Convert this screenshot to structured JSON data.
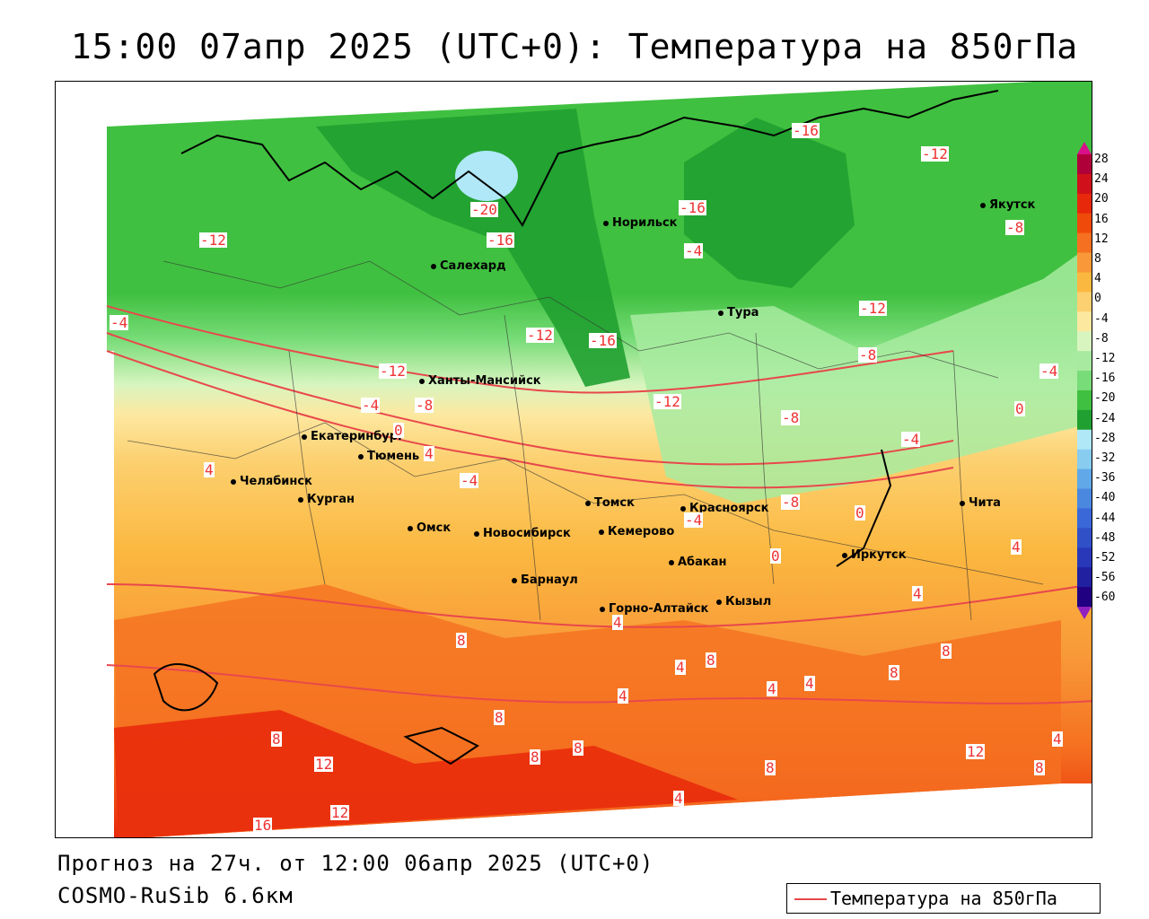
{
  "title": "15:00 07апр 2025 (UTC+0): Температура на 850гПа",
  "footer": {
    "forecast": "Прогноз на 27ч. от 12:00 06апр 2025 (UTC+0)",
    "model": "COSMO-RuSib 6.6км"
  },
  "legend": {
    "label": "Температура на 850гПа",
    "line_color": "#e8484c"
  },
  "colorbar": {
    "labels": [
      "28",
      "24",
      "20",
      "16",
      "12",
      "8",
      "4",
      "0",
      "-4",
      "-8",
      "-12",
      "-16",
      "-20",
      "-24",
      "-28",
      "-32",
      "-36",
      "-40",
      "-44",
      "-48",
      "-52",
      "-56",
      "-60"
    ],
    "colors": [
      "#b0003a",
      "#d0101a",
      "#e8280a",
      "#f04a0a",
      "#f57020",
      "#f89838",
      "#fbb840",
      "#fcd070",
      "#fde8a0",
      "#d8f5c0",
      "#a8eba0",
      "#78dc78",
      "#40c040",
      "#20a030",
      "#b0e8f8",
      "#88ccf0",
      "#60a8e8",
      "#4a88e0",
      "#3a68d8",
      "#3050c8",
      "#2838b8",
      "#2020a0",
      "#200080"
    ]
  },
  "cities": [
    {
      "name": "Якутск"
    },
    {
      "name": "Норильск"
    },
    {
      "name": "Салехард"
    },
    {
      "name": "Тура"
    },
    {
      "name": "Ханты-Мансийск"
    },
    {
      "name": "Екатеринбург"
    },
    {
      "name": "Тюмень"
    },
    {
      "name": "Челябинск"
    },
    {
      "name": "Курган"
    },
    {
      "name": "Омск"
    },
    {
      "name": "Новосибирск"
    },
    {
      "name": "Томск"
    },
    {
      "name": "Кемерово"
    },
    {
      "name": "Красноярск"
    },
    {
      "name": "Барнаул"
    },
    {
      "name": "Абакан"
    },
    {
      "name": "Иркутск"
    },
    {
      "name": "Чита"
    },
    {
      "name": "Горно-Алтайск"
    },
    {
      "name": "Кызыл"
    }
  ],
  "isolines": [
    "-16",
    "-12",
    "-20",
    "-16",
    "-12",
    "-8",
    "-4",
    "-12",
    "-12",
    "-16",
    "-4",
    "-12",
    "-8",
    "-16",
    "-4",
    "-8",
    "0",
    "4",
    "-4",
    "-8",
    "0",
    "4",
    "-4",
    "0",
    "4",
    "0",
    "4",
    "8",
    "4",
    "8",
    "4",
    "8",
    "4",
    "4",
    "8",
    "4",
    "8",
    "8",
    "12",
    "8",
    "12",
    "16",
    "8",
    "8",
    "12",
    "8",
    "4",
    "-4",
    "-12",
    "-8",
    "-4",
    "4"
  ]
}
